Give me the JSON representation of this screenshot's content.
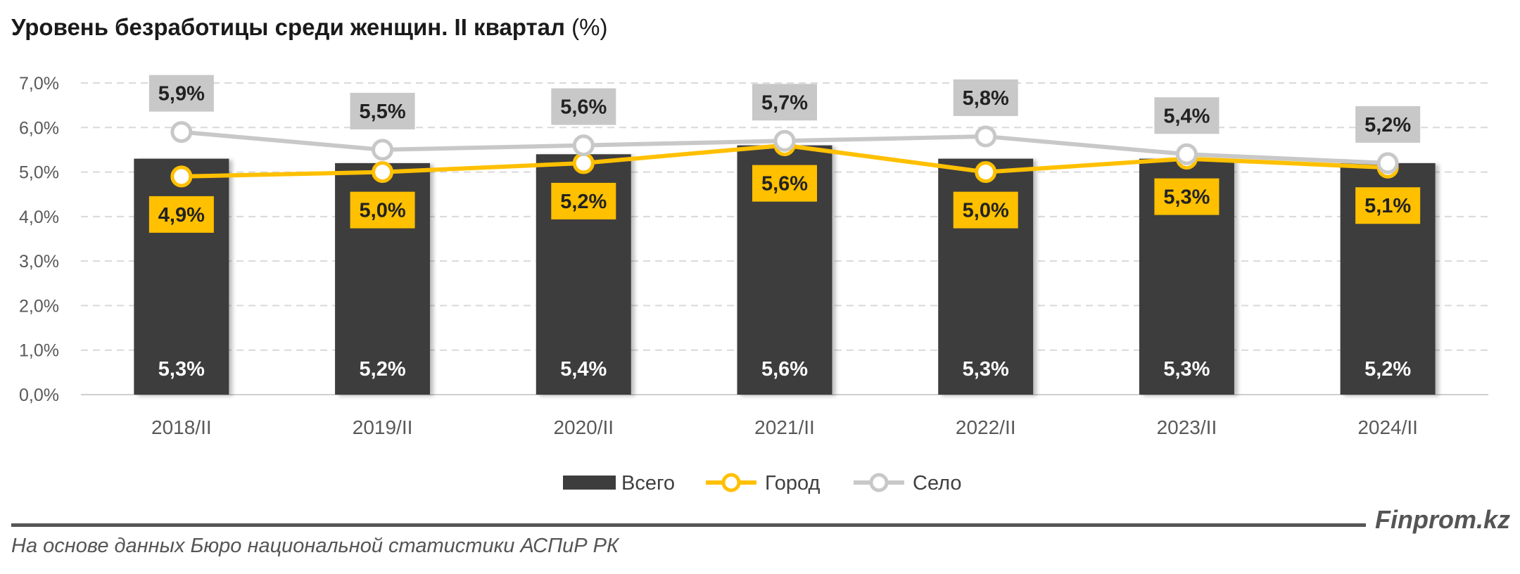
{
  "title": {
    "main": "Уровень безработицы среди женщин. II квартал",
    "unit": "(%)"
  },
  "chart_data": {
    "type": "bar",
    "categories": [
      "2018/II",
      "2019/II",
      "2020/II",
      "2021/II",
      "2022/II",
      "2023/II",
      "2024/II"
    ],
    "series": [
      {
        "name": "Всего",
        "kind": "bar",
        "color": "#3d3d3d",
        "values": [
          5.3,
          5.2,
          5.4,
          5.6,
          5.3,
          5.3,
          5.2
        ],
        "labels": [
          "5,3%",
          "5,2%",
          "5,4%",
          "5,6%",
          "5,3%",
          "5,3%",
          "5,2%"
        ]
      },
      {
        "name": "Город",
        "kind": "line",
        "color": "#ffc000",
        "values": [
          4.9,
          5.0,
          5.2,
          5.6,
          5.0,
          5.3,
          5.1
        ],
        "labels": [
          "4,9%",
          "5,0%",
          "5,2%",
          "5,6%",
          "5,0%",
          "5,3%",
          "5,1%"
        ]
      },
      {
        "name": "Село",
        "kind": "line",
        "color": "#c8c8c8",
        "values": [
          5.9,
          5.5,
          5.6,
          5.7,
          5.8,
          5.4,
          5.2
        ],
        "labels": [
          "5,9%",
          "5,5%",
          "5,6%",
          "5,7%",
          "5,8%",
          "5,4%",
          "5,2%"
        ]
      }
    ],
    "ylim": [
      0,
      7
    ],
    "yticks": [
      "0,0%",
      "1,0%",
      "2,0%",
      "3,0%",
      "4,0%",
      "5,0%",
      "6,0%",
      "7,0%"
    ],
    "grid": true,
    "legend_position": "bottom"
  },
  "footer": {
    "source": "На основе данных Бюро национальной статистики АСПиР РК",
    "brand": "Finprom.kz"
  }
}
